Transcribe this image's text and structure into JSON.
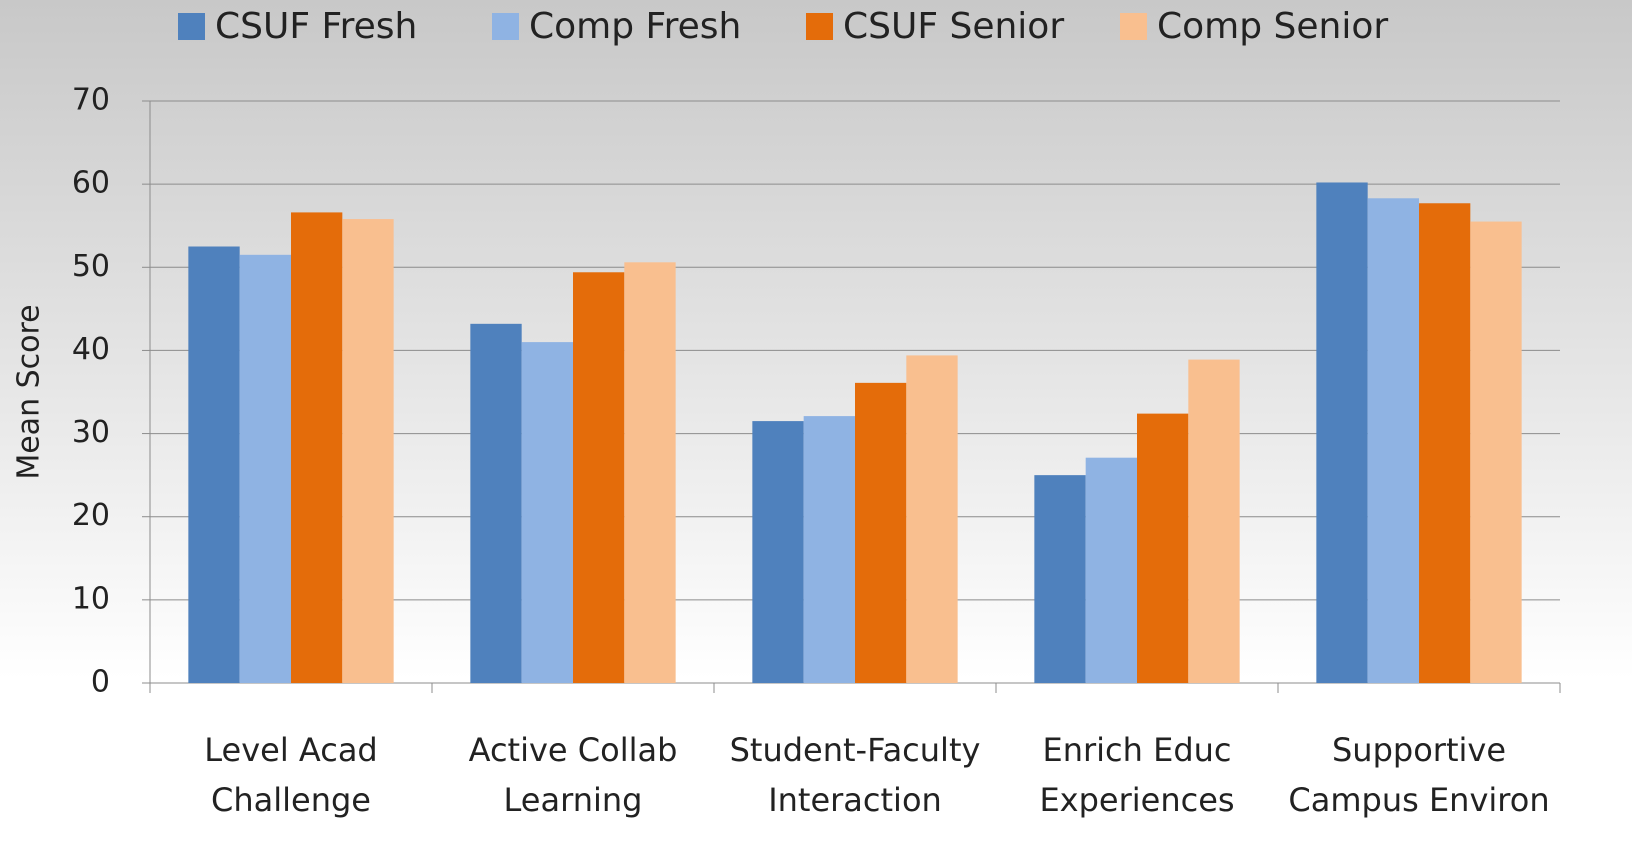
{
  "chart_data": {
    "type": "bar",
    "y_label": "Mean Score",
    "categories": [
      "Level Acad Challenge",
      "Active Collab Learning",
      "Student-Faculty Interaction",
      "Enrich Educ Experiences",
      "Supportive Campus Environ"
    ],
    "series": [
      {
        "name": "CSUF Fresh",
        "color": "#4f81bd",
        "values": [
          52.5,
          43.2,
          31.5,
          25.0,
          60.2
        ]
      },
      {
        "name": "Comp Fresh",
        "color": "#8fb3e3",
        "values": [
          51.5,
          41.0,
          32.1,
          27.1,
          58.3
        ]
      },
      {
        "name": "CSUF Senior",
        "color": "#e46c0a",
        "values": [
          56.6,
          49.4,
          36.1,
          32.4,
          57.7
        ]
      },
      {
        "name": "Comp Senior",
        "color": "#f9bf8f",
        "values": [
          55.8,
          50.6,
          39.4,
          38.9,
          55.5
        ]
      }
    ],
    "ylim": [
      0,
      70
    ],
    "yticks": [
      0,
      10,
      20,
      30,
      40,
      50,
      60,
      70
    ],
    "grid": true,
    "legend": "top"
  }
}
